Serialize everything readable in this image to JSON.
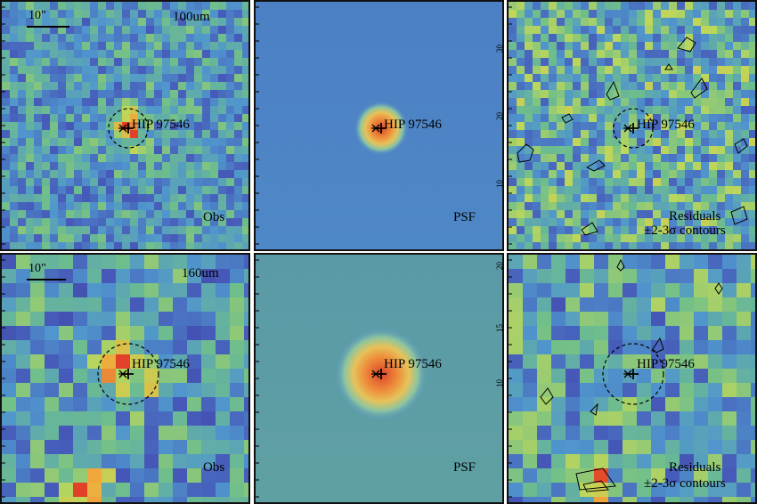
{
  "source_name": "HIP 97546",
  "scale_bar_label": "10\"",
  "rows": [
    {
      "band": "100um",
      "panels": {
        "obs_label": "Obs",
        "psf_label": "PSF",
        "residual_label_line1": "Residuals",
        "residual_label_line2": "±2-3σ contours"
      },
      "psf_axis_ticks": [
        "30",
        "20",
        "10"
      ]
    },
    {
      "band": "160um",
      "panels": {
        "obs_label": "Obs",
        "psf_label": "PSF",
        "residual_label_line1": "Residuals",
        "residual_label_line2": "±2-3σ contours"
      },
      "psf_axis_ticks": [
        "20",
        "15",
        "10"
      ]
    }
  ],
  "colors": {
    "panel_border": "#111111",
    "map_low": "#3a2f8f",
    "map_mid": "#5a9bd5",
    "map_high": "#e04a2a",
    "psf_background_top": "#4f85c8",
    "psf_background_bottom": "#5f9faa",
    "contour": "#000000"
  }
}
